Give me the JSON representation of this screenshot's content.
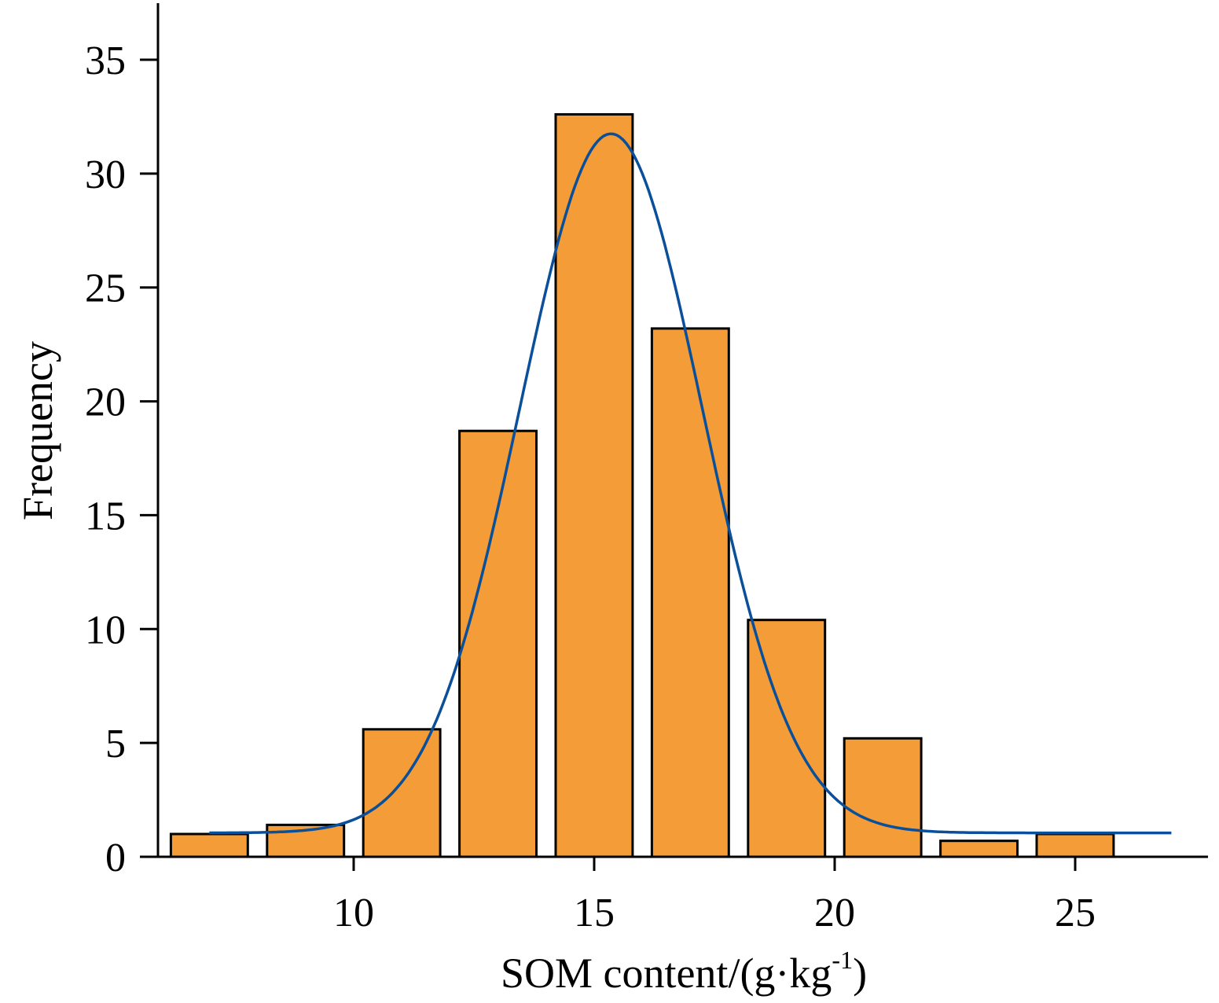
{
  "chart_data": {
    "type": "bar",
    "title": "",
    "xlabel": "SOM content/(g·kg",
    "xlabel_sup": "-1",
    "xlabel_close": ")",
    "ylabel": "Frequency",
    "xlim": [
      5.6,
      28.3
    ],
    "ylim": [
      0,
      37
    ],
    "x_ticks": [
      10,
      15,
      20,
      25
    ],
    "y_ticks": [
      0,
      5,
      10,
      15,
      20,
      25,
      30,
      35
    ],
    "bin_width": 2,
    "bar_width": 1.6,
    "bins": [
      {
        "center": 7,
        "value": 1.0
      },
      {
        "center": 9,
        "value": 1.4
      },
      {
        "center": 11,
        "value": 5.6
      },
      {
        "center": 13,
        "value": 18.7
      },
      {
        "center": 15,
        "value": 32.6
      },
      {
        "center": 17,
        "value": 23.2
      },
      {
        "center": 19,
        "value": 10.4
      },
      {
        "center": 21,
        "value": 5.2
      },
      {
        "center": 23,
        "value": 0.7
      },
      {
        "center": 25,
        "value": 1.0
      }
    ],
    "fit_curve": {
      "name": "",
      "type": "gaussian",
      "mean": 15.35,
      "sd": 1.9,
      "peak": 30.7,
      "baseline": 1.05,
      "x_range": [
        7,
        27
      ]
    },
    "grid": false,
    "legend": "none",
    "colors": {
      "bar_fill": "#f39c38",
      "bar_stroke": "#000000",
      "curve": "#0a4f9a",
      "axis": "#000000"
    }
  }
}
